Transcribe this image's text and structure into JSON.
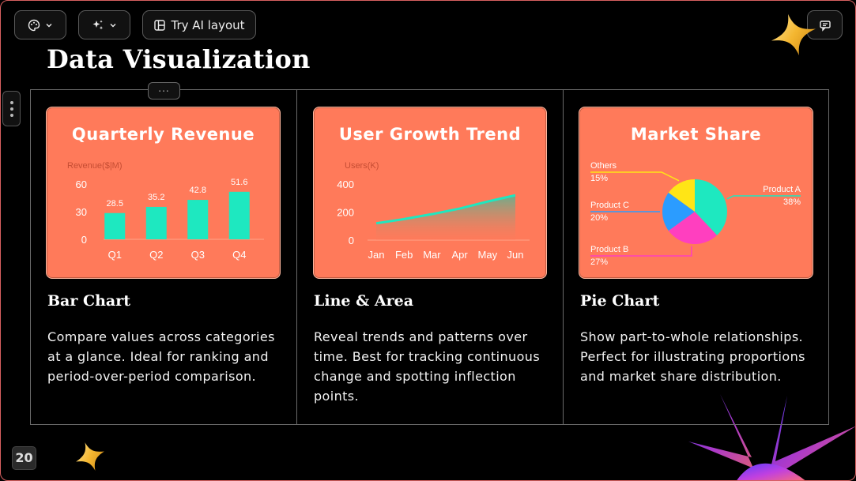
{
  "toolbar": {
    "theme_icon": "palette-icon",
    "magic_icon": "sparkles-icon",
    "ai_layout_icon": "layout-icon",
    "ai_layout_label": "Try AI layout",
    "comment_icon": "comment-icon"
  },
  "slide": {
    "title": "Data Visualization",
    "drag_handle_label": "...",
    "page_number": "20"
  },
  "columns": [
    {
      "card_title": "Quarterly Revenue",
      "heading": "Bar Chart",
      "description": "Compare values across categories at a glance. Ideal for ranking and period-over-period comparison."
    },
    {
      "card_title": "User Growth Trend",
      "heading": "Line & Area",
      "description": "Reveal trends and patterns over time. Best for tracking continuous change and spotting inflection points."
    },
    {
      "card_title": "Market Share",
      "heading": "Pie Chart",
      "description": "Show part-to-whole relationships. Perfect for illustrating proportions and market share distribution."
    }
  ],
  "chart_data": [
    {
      "type": "bar",
      "title": "Quarterly Revenue",
      "ylabel": "Revenue($|M)",
      "categories": [
        "Q1",
        "Q2",
        "Q3",
        "Q4"
      ],
      "values": [
        28.5,
        35.2,
        42.8,
        51.6
      ],
      "yticks": [
        "0",
        "30",
        "60"
      ],
      "ylim": [
        0,
        60
      ],
      "grid": false,
      "color": "#1ee8c0"
    },
    {
      "type": "area",
      "title": "User Growth Trend",
      "ylabel": "Users(K)",
      "categories": [
        "Jan",
        "Feb",
        "Mar",
        "Apr",
        "May",
        "Jun"
      ],
      "values": [
        120,
        150,
        185,
        225,
        275,
        320
      ],
      "yticks": [
        "0",
        "200",
        "400"
      ],
      "ylim": [
        0,
        400
      ],
      "grid": false,
      "color": "#1ee8c0"
    },
    {
      "type": "pie",
      "title": "Market Share",
      "slices": [
        {
          "label": "Product A",
          "value": 38,
          "value_label": "38%",
          "color": "#1ee8c0"
        },
        {
          "label": "Product B",
          "value": 27,
          "value_label": "27%",
          "color": "#ff3fbf"
        },
        {
          "label": "Product C",
          "value": 20,
          "value_label": "20%",
          "color": "#2b9cff"
        },
        {
          "label": "Others",
          "value": 15,
          "value_label": "15%",
          "color": "#ffe516"
        }
      ]
    }
  ]
}
